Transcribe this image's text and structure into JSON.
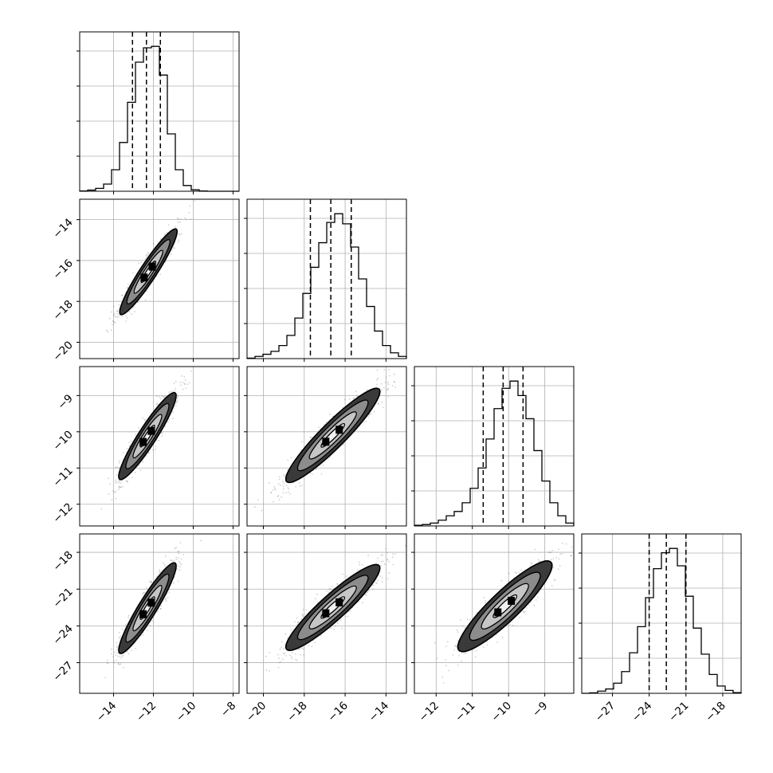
{
  "chart_data": {
    "type": "corner",
    "title": "",
    "params": [
      {
        "name": "",
        "range": [
          -15.7,
          -7.7
        ],
        "xticks": [
          -14,
          -12,
          -10,
          -8
        ],
        "xtick_labels": [
          "−14",
          "−12",
          "−10",
          "−8"
        ],
        "quantiles": [
          -13.05,
          -12.35,
          -11.65
        ]
      },
      {
        "name": "",
        "range": [
          -20.8,
          -13.0
        ],
        "xticks": [
          -20,
          -18,
          -16,
          -14
        ],
        "xtick_labels": [
          "−20",
          "−18",
          "−16",
          "−14"
        ],
        "yticks": [
          -14,
          -16,
          -18,
          -20
        ],
        "ytick_labels": [
          "−14",
          "−16",
          "−18",
          "−20"
        ],
        "quantiles": [
          -17.7,
          -16.7,
          -15.7
        ]
      },
      {
        "name": "",
        "range": [
          -12.6,
          -8.2
        ],
        "xticks": [
          -12,
          -11,
          -10,
          -9
        ],
        "xtick_labels": [
          "−12",
          "−11",
          "−10",
          "−9"
        ],
        "yticks": [
          -9,
          -10,
          -11,
          -12
        ],
        "ytick_labels": [
          "−9",
          "−10",
          "−11",
          "−12"
        ],
        "quantiles": [
          -10.7,
          -10.15,
          -9.6
        ]
      },
      {
        "name": "",
        "range": [
          -29.5,
          -16.5
        ],
        "xticks": [
          -27,
          -24,
          -21,
          -18
        ],
        "xtick_labels": [
          "−27",
          "−24",
          "−21",
          "−18"
        ],
        "yticks": [
          -18,
          -21,
          -24,
          -27
        ],
        "ytick_labels": [
          "−18",
          "−21",
          "−24",
          "−27"
        ],
        "quantiles": [
          -24.0,
          -22.6,
          -21.0
        ]
      }
    ],
    "histograms": [
      {
        "param": 0,
        "edges": [
          -15.7,
          -15.3,
          -14.9,
          -14.5,
          -14.1,
          -13.7,
          -13.3,
          -12.9,
          -12.5,
          -12.1,
          -11.7,
          -11.3,
          -10.9,
          -10.5,
          -10.1,
          -9.7,
          -9.3,
          -8.9,
          -8.5,
          -8.1,
          -7.7
        ],
        "counts": [
          0.2,
          0.8,
          2,
          5,
          15,
          34,
          62,
          90,
          100,
          101,
          81,
          40,
          15,
          4,
          1,
          0.2,
          0,
          0,
          0,
          0
        ]
      },
      {
        "param": 1,
        "edges": [
          -20.8,
          -20.41,
          -20.02,
          -19.63,
          -19.24,
          -18.85,
          -18.46,
          -18.07,
          -17.68,
          -17.29,
          -16.9,
          -16.51,
          -16.12,
          -15.73,
          -15.34,
          -14.95,
          -14.56,
          -14.17,
          -13.78,
          -13.39,
          -13.0
        ],
        "counts": [
          0.3,
          1.5,
          3,
          5,
          9,
          16,
          28,
          45,
          63,
          80,
          94,
          100,
          93,
          77,
          55,
          36,
          19,
          9,
          4,
          1.5
        ]
      },
      {
        "param": 2,
        "edges": [
          -12.6,
          -12.38,
          -12.16,
          -11.94,
          -11.72,
          -11.5,
          -11.28,
          -11.06,
          -10.84,
          -10.62,
          -10.4,
          -10.18,
          -9.96,
          -9.74,
          -9.52,
          -9.3,
          -9.08,
          -8.86,
          -8.64,
          -8.42,
          -8.2
        ],
        "counts": [
          0.5,
          1,
          2,
          4,
          7,
          10,
          16,
          26,
          40,
          60,
          81,
          95,
          100,
          90,
          74,
          52,
          31,
          16,
          7,
          2
        ]
      },
      {
        "param": 3,
        "edges": [
          -29.5,
          -28.85,
          -28.2,
          -27.55,
          -26.9,
          -26.25,
          -25.6,
          -24.95,
          -24.3,
          -23.65,
          -23.0,
          -22.35,
          -21.7,
          -21.05,
          -20.4,
          -19.75,
          -19.1,
          -18.45,
          -17.8,
          -17.15,
          -16.5
        ],
        "counts": [
          0,
          0.3,
          1.5,
          3,
          7,
          15,
          28,
          46,
          66,
          86,
          97,
          100,
          88,
          67,
          45,
          27,
          13,
          5,
          2,
          0.5
        ]
      }
    ],
    "pairs": [
      {
        "x": 0,
        "y": 1,
        "mean": [
          -12.25,
          -16.55
        ],
        "std": [
          0.72,
          1.05
        ],
        "corr": 0.94
      },
      {
        "x": 0,
        "y": 2,
        "mean": [
          -12.3,
          -10.12
        ],
        "std": [
          0.72,
          0.6
        ],
        "corr": 0.93
      },
      {
        "x": 1,
        "y": 2,
        "mean": [
          -16.6,
          -10.1
        ],
        "std": [
          1.15,
          0.65
        ],
        "corr": 0.93
      },
      {
        "x": 0,
        "y": 3,
        "mean": [
          -12.3,
          -22.55
        ],
        "std": [
          0.72,
          1.85
        ],
        "corr": 0.93
      },
      {
        "x": 1,
        "y": 3,
        "mean": [
          -16.6,
          -22.5
        ],
        "std": [
          1.15,
          1.75
        ],
        "corr": 0.92
      },
      {
        "x": 2,
        "y": 3,
        "mean": [
          -10.1,
          -22.4
        ],
        "std": [
          0.65,
          1.85
        ],
        "corr": 0.9
      }
    ],
    "contour_levels_sigma": [
      0.5,
      1.0,
      1.5,
      2.0
    ],
    "grid": true,
    "legend": "none"
  },
  "colors": {
    "line": "#000000",
    "grid": "#b0b0b0",
    "points": "#555555",
    "frame": "#000000"
  }
}
